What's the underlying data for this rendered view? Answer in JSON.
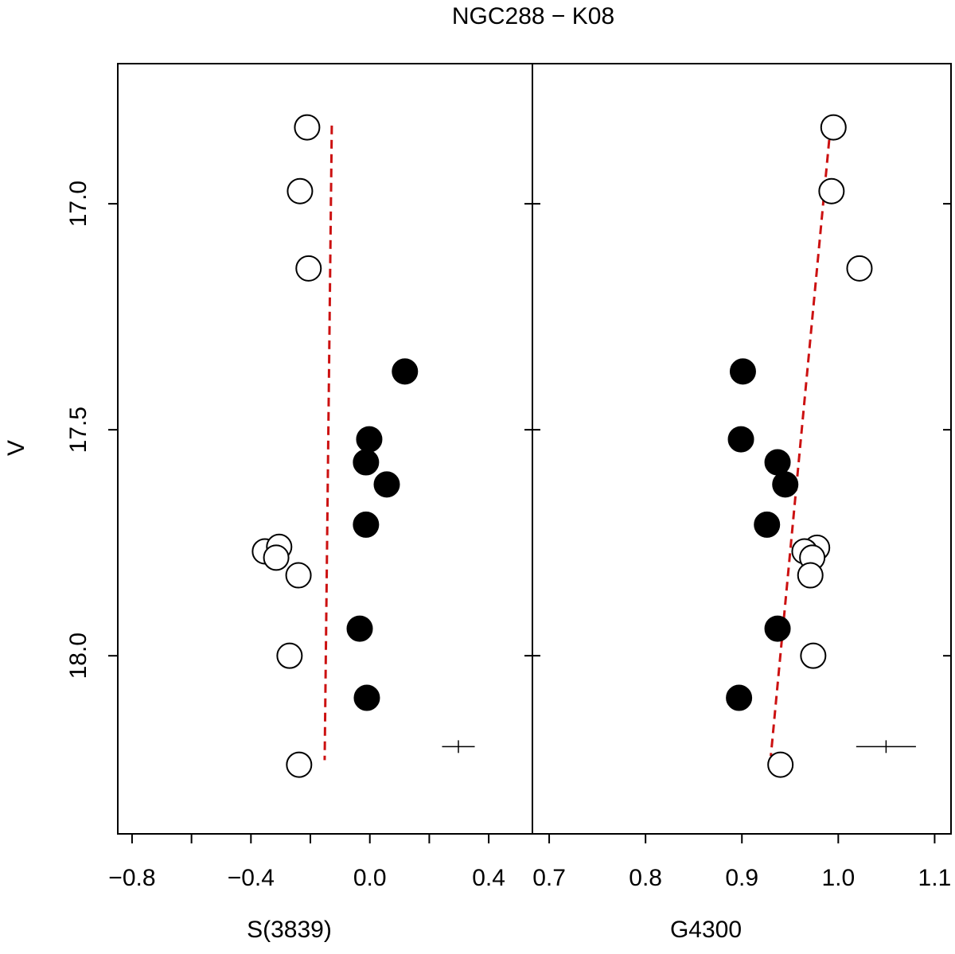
{
  "chart_data": [
    {
      "type": "scatter",
      "title": "NGC288 − K08",
      "ylabel": "V",
      "xlabel": "S(3839)",
      "xlim": [
        -0.848,
        0.547
      ],
      "ylim": [
        18.394,
        16.69
      ],
      "xticks": [
        {
          "value": -0.8,
          "label": "−0.8"
        },
        {
          "value": -0.4,
          "label": "−0.4"
        },
        {
          "value": 0,
          "label": "0.0"
        },
        0.4
      ],
      "xminor_ticks": [
        -0.6,
        -0.2,
        0.2
      ],
      "yticks": [
        {
          "value": 17,
          "label": "17.0"
        },
        17.5,
        {
          "value": 18,
          "label": "18.0"
        }
      ],
      "series": [
        {
          "color": "#000000",
          "filled": false,
          "x": [
            -0.211,
            -0.235,
            -0.206,
            -0.353,
            -0.305,
            -0.315,
            -0.24,
            -0.27,
            -0.238
          ],
          "values": [
            16.831,
            16.972,
            17.143,
            17.769,
            17.759,
            17.783,
            17.822,
            18.0,
            18.241
          ]
        },
        {
          "color": "#000000",
          "filled": true,
          "x": [
            0.118,
            -0.002,
            -0.013,
            0.057,
            -0.013,
            -0.034,
            -0.01
          ],
          "values": [
            17.371,
            17.521,
            17.572,
            17.621,
            17.71,
            17.94,
            18.093
          ]
        }
      ],
      "fit_line": {
        "color": "#cc1111",
        "x": [
          -0.128,
          -0.152
        ],
        "values": [
          16.827,
          18.231
        ]
      },
      "error_bar": {
        "x": 0.298,
        "y": 18.201,
        "xerr": 0.055,
        "yerr": 0.014
      }
    },
    {
      "type": "scatter",
      "xlabel": "G4300",
      "xlim": [
        0.6826,
        1.117
      ],
      "ylim": [
        18.394,
        16.69
      ],
      "xticks": [
        0.7,
        0.8,
        0.9,
        {
          "value": 1,
          "label": "1.0"
        },
        1.1
      ],
      "series": [
        {
          "color": "#000000",
          "filled": false,
          "x": [
            0.995,
            0.993,
            1.022,
            0.978,
            0.965,
            0.973,
            0.971,
            0.974,
            0.94
          ],
          "values": [
            16.831,
            16.972,
            17.143,
            17.761,
            17.769,
            17.783,
            17.822,
            18.0,
            18.241
          ]
        },
        {
          "color": "#000000",
          "filled": true,
          "x": [
            0.901,
            0.899,
            0.937,
            0.945,
            0.926,
            0.937,
            0.897
          ],
          "values": [
            17.371,
            17.521,
            17.572,
            17.621,
            17.71,
            17.94,
            18.093
          ]
        }
      ],
      "fit_line": {
        "color": "#cc1111",
        "x": [
          0.992,
          0.93
        ],
        "values": [
          16.827,
          18.222
        ]
      },
      "error_bar": {
        "x": 1.0496,
        "y": 18.201,
        "xerr": 0.031,
        "yerr": 0.014
      }
    }
  ]
}
